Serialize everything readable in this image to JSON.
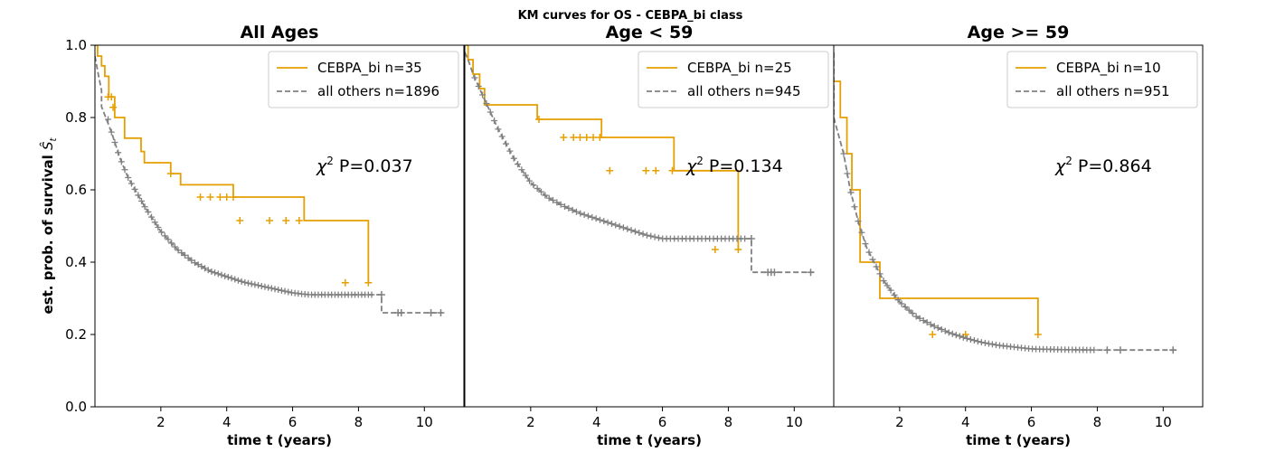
{
  "figure": {
    "title": "KM curves for OS - CEBPA_bi class",
    "ylabel": "est. prob. of survival Ŝt",
    "xlabel": "time t (years)"
  },
  "colors": {
    "cebpa": "#E69F00",
    "others": "#808080",
    "axis": "#000000"
  },
  "chart_data": [
    {
      "type": "line",
      "title": "All Ages",
      "xlabel": "time t (years)",
      "ylabel": "est. prob. of survival Ŝt",
      "xlim": [
        0,
        11.2
      ],
      "ylim": [
        0,
        1
      ],
      "xticks": [
        2,
        4,
        6,
        8,
        10
      ],
      "yticks": [
        0.0,
        0.2,
        0.4,
        0.6,
        0.8,
        1.0
      ],
      "annotation": {
        "prefix": "χ",
        "sup": "2",
        "text": " P=0.037"
      },
      "legend_position": "top-right",
      "series": [
        {
          "name": "CEBPA_bi n=35",
          "style": "step-solid",
          "x": [
            0,
            0.08,
            0.2,
            0.3,
            0.42,
            0.6,
            0.9,
            1.4,
            1.5,
            2.3,
            2.6,
            4.2,
            6.35,
            8.3
          ],
          "y": [
            1.0,
            0.97,
            0.943,
            0.914,
            0.857,
            0.8,
            0.743,
            0.706,
            0.675,
            0.645,
            0.614,
            0.58,
            0.515,
            0.343
          ],
          "censor_x": [
            0.4,
            0.5,
            0.55,
            2.3,
            3.2,
            3.5,
            3.8,
            4.0,
            4.2,
            4.4,
            5.3,
            5.8,
            6.2,
            7.6,
            8.3
          ],
          "censor_y": [
            0.857,
            0.857,
            0.828,
            0.645,
            0.58,
            0.58,
            0.58,
            0.58,
            0.58,
            0.515,
            0.515,
            0.515,
            0.515,
            0.343,
            0.343
          ]
        },
        {
          "name": "all others n=1896",
          "style": "dashed",
          "x": [
            0,
            0.1,
            0.2,
            0.3,
            0.5,
            0.75,
            1.0,
            1.5,
            2.0,
            2.5,
            3.0,
            3.5,
            4.0,
            4.5,
            5.0,
            5.5,
            6.0,
            6.5,
            7.0,
            8.0,
            8.7,
            8.75,
            10.55
          ],
          "y": [
            0.97,
            0.92,
            0.875,
            0.83,
            0.76,
            0.69,
            0.635,
            0.555,
            0.485,
            0.435,
            0.4,
            0.375,
            0.36,
            0.345,
            0.335,
            0.325,
            0.315,
            0.31,
            0.31,
            0.31,
            0.31,
            0.26,
            0.26
          ],
          "censor_x_start": 0.4,
          "censor_x_end": 8.4,
          "censor_count": 80,
          "censor_x_extra": [
            8.7,
            9.2,
            9.3,
            10.2,
            10.5
          ],
          "censor_y_extra": [
            0.31,
            0.26,
            0.26,
            0.26,
            0.26
          ]
        }
      ]
    },
    {
      "type": "line",
      "title": "Age < 59",
      "xlabel": "time t (years)",
      "ylabel": "",
      "xlim": [
        0,
        11.2
      ],
      "ylim": [
        0,
        1
      ],
      "xticks": [
        2,
        4,
        6,
        8,
        10
      ],
      "yticks": [],
      "annotation": {
        "prefix": "χ",
        "sup": "2",
        "text": " P=0.134"
      },
      "legend_position": "top-right",
      "series": [
        {
          "name": "CEBPA_bi n=25",
          "style": "step-solid",
          "x": [
            0,
            0.1,
            0.25,
            0.45,
            0.6,
            1.5,
            2.2,
            4.15,
            6.35,
            8.3
          ],
          "y": [
            1.0,
            0.96,
            0.92,
            0.88,
            0.835,
            0.835,
            0.795,
            0.745,
            0.653,
            0.435
          ],
          "censor_x": [
            2.25,
            3.0,
            3.3,
            3.5,
            3.7,
            3.9,
            4.1,
            4.4,
            5.5,
            5.8,
            6.3,
            7.6,
            8.3
          ],
          "censor_y": [
            0.795,
            0.745,
            0.745,
            0.745,
            0.745,
            0.745,
            0.745,
            0.653,
            0.653,
            0.653,
            0.653,
            0.435,
            0.435
          ]
        },
        {
          "name": "all others n=945",
          "style": "dashed",
          "x": [
            0,
            0.1,
            0.25,
            0.5,
            0.75,
            1.0,
            1.5,
            2.0,
            2.5,
            3.0,
            3.5,
            4.0,
            4.5,
            5.0,
            5.5,
            6.0,
            7.0,
            8.0,
            8.7,
            8.75,
            10.6
          ],
          "y": [
            0.98,
            0.96,
            0.92,
            0.87,
            0.82,
            0.77,
            0.685,
            0.62,
            0.58,
            0.555,
            0.535,
            0.52,
            0.505,
            0.49,
            0.475,
            0.465,
            0.465,
            0.465,
            0.465,
            0.372,
            0.372
          ],
          "censor_x_start": 0.3,
          "censor_x_end": 8.5,
          "censor_count": 70,
          "censor_x_extra": [
            8.7,
            9.2,
            9.3,
            9.4,
            10.5
          ],
          "censor_y_extra": [
            0.465,
            0.372,
            0.372,
            0.372,
            0.372
          ]
        }
      ]
    },
    {
      "type": "line",
      "title": "Age >= 59",
      "xlabel": "time t (years)",
      "ylabel": "",
      "xlim": [
        0,
        11.2
      ],
      "ylim": [
        0,
        1
      ],
      "xticks": [
        2,
        4,
        6,
        8,
        10
      ],
      "yticks": [],
      "annotation": {
        "prefix": "χ",
        "sup": "2",
        "text": " P=0.864"
      },
      "legend_position": "top-right",
      "series": [
        {
          "name": "CEBPA_bi n=10",
          "style": "step-solid",
          "x": [
            0,
            0.2,
            0.4,
            0.55,
            0.8,
            1.4,
            6.2
          ],
          "y": [
            0.9,
            0.8,
            0.7,
            0.6,
            0.4,
            0.3,
            0.2
          ],
          "censor_x": [
            3.0,
            4.0,
            6.2
          ],
          "censor_y": [
            0.2,
            0.2,
            0.2
          ]
        },
        {
          "name": "all others n=951",
          "style": "dashed",
          "x": [
            0,
            0.05,
            0.15,
            0.3,
            0.5,
            0.75,
            1.0,
            1.5,
            2.0,
            2.5,
            3.0,
            3.5,
            4.0,
            4.5,
            5.0,
            6.0,
            7.0,
            8.0,
            10.4
          ],
          "y": [
            0.98,
            0.9,
            0.8,
            0.7,
            0.6,
            0.51,
            0.44,
            0.35,
            0.29,
            0.25,
            0.225,
            0.205,
            0.19,
            0.178,
            0.17,
            0.16,
            0.158,
            0.157,
            0.157
          ],
          "censor_x_start": 0.3,
          "censor_x_end": 7.9,
          "censor_count": 70,
          "censor_x_extra": [
            8.3,
            8.7,
            10.3
          ],
          "censor_y_extra": [
            0.157,
            0.157,
            0.157
          ]
        }
      ]
    }
  ]
}
